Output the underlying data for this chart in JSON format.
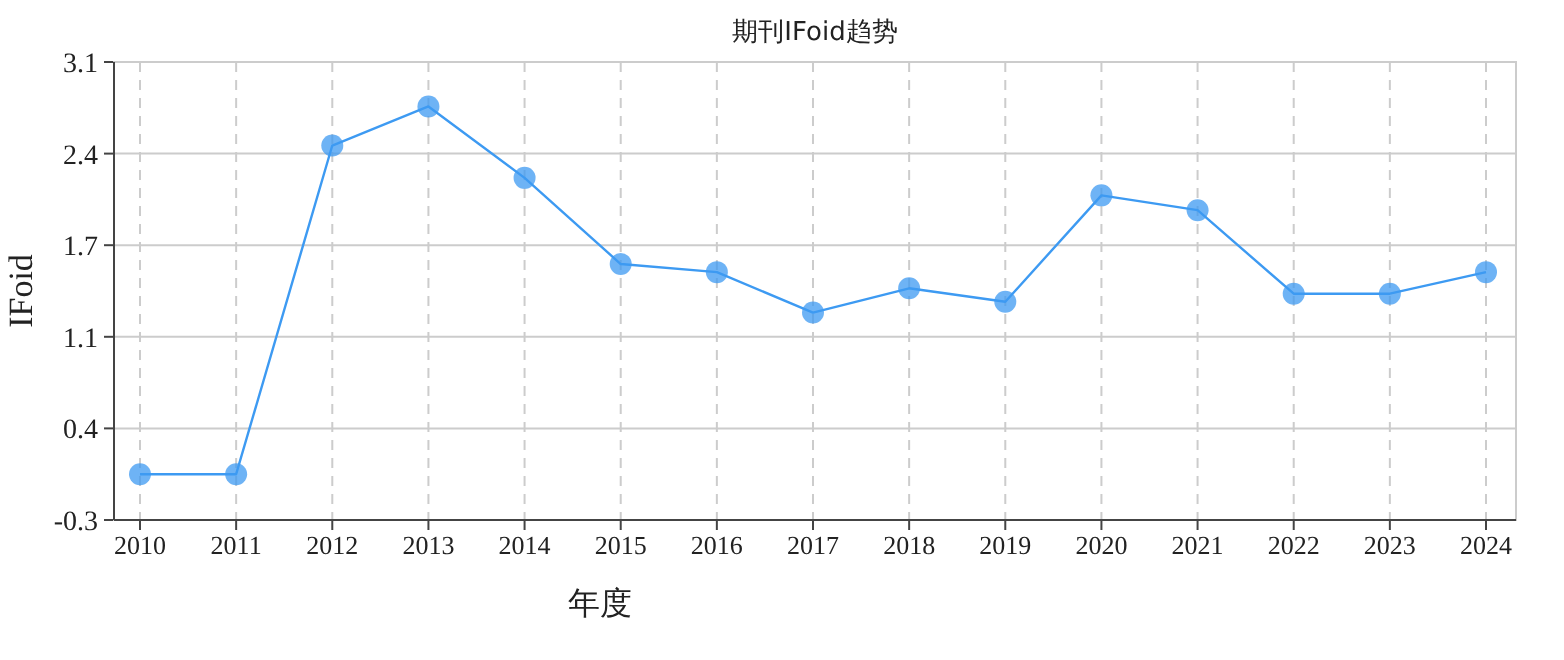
{
  "chart_data": {
    "type": "line",
    "title": "期刊IFoid趋势",
    "xlabel": "年度",
    "ylabel": "IFoid",
    "categories": [
      "2010",
      "2011",
      "2012",
      "2013",
      "2014",
      "2015",
      "2016",
      "2017",
      "2018",
      "2019",
      "2020",
      "2021",
      "2022",
      "2023",
      "2024"
    ],
    "series": [
      {
        "color": "#3d9af2",
        "values": [
          0.04,
          0.04,
          2.48,
          2.77,
          2.24,
          1.6,
          1.54,
          1.24,
          1.42,
          1.32,
          2.11,
          2.0,
          1.38,
          1.38,
          1.54
        ]
      }
    ],
    "ylim": [
      -0.3,
      3.1
    ],
    "yticks": [
      {
        "value": -0.3,
        "label": "-0.3"
      },
      {
        "value": 0.38,
        "label": "0.4"
      },
      {
        "value": 1.06,
        "label": "1.1"
      },
      {
        "value": 1.74,
        "label": "1.7"
      },
      {
        "value": 2.42,
        "label": "2.4"
      },
      {
        "value": 3.1,
        "label": "3.1"
      }
    ],
    "grid": true,
    "marker": "circle",
    "line_style": "solid"
  }
}
